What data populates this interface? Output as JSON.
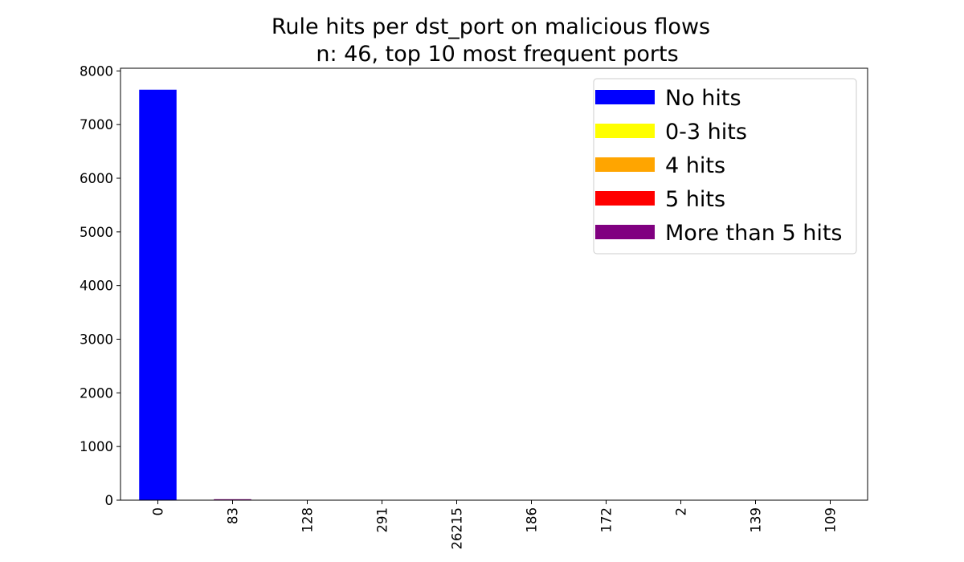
{
  "chart_data": {
    "type": "bar",
    "stacked": true,
    "title": "Rule hits per dst_port on malicious flows",
    "subtitle": "n: 46, top 10 most frequent ports",
    "xlabel": "",
    "ylabel": "",
    "categories": [
      "0",
      "83",
      "128",
      "291",
      "26215",
      "186",
      "172",
      "2",
      "139",
      "109"
    ],
    "ylim": [
      0,
      8050
    ],
    "yticks": [
      0,
      1000,
      2000,
      3000,
      4000,
      5000,
      6000,
      7000,
      8000
    ],
    "grid": false,
    "legend_position": "top-right",
    "series": [
      {
        "name": "No hits",
        "color": "#0000ff",
        "values": [
          7650,
          10,
          0,
          0,
          0,
          0,
          0,
          0,
          0,
          0
        ]
      },
      {
        "name": "0-3 hits",
        "color": "#ffff00",
        "values": [
          0,
          0,
          0,
          0,
          0,
          0,
          0,
          0,
          0,
          0
        ]
      },
      {
        "name": "4 hits",
        "color": "#ffa500",
        "values": [
          0,
          0,
          0,
          0,
          0,
          0,
          0,
          0,
          0,
          0
        ]
      },
      {
        "name": "5 hits",
        "color": "#ff0000",
        "values": [
          0,
          0,
          0,
          0,
          0,
          0,
          0,
          0,
          0,
          0
        ]
      },
      {
        "name": "More than 5 hits",
        "color": "#800080",
        "values": [
          0,
          8,
          0,
          0,
          0,
          0,
          0,
          0,
          0,
          0
        ]
      }
    ]
  }
}
